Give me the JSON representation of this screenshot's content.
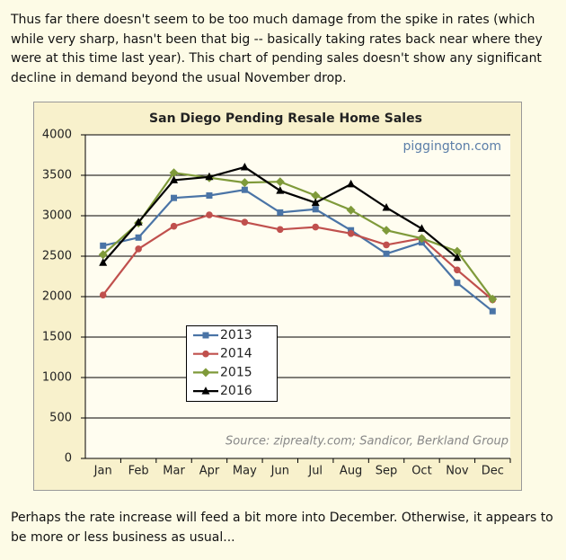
{
  "text_before": "Thus far there doesn't seem to be too much damage from the spike in rates (which while very sharp, hasn't been that big -- basically taking rates back near where they were at this time last year).  This chart of pending sales doesn't show any significant decline in demand beyond the usual November drop.",
  "chart_data": {
    "type": "line",
    "title": "San Diego Pending Resale Home Sales",
    "watermark": "piggington.com",
    "source": "Source: ziprealty.com; Sandicor, Berkland Group",
    "categories": [
      "Jan",
      "Feb",
      "Mar",
      "Apr",
      "May",
      "Jun",
      "Jul",
      "Aug",
      "Sep",
      "Oct",
      "Nov",
      "Dec"
    ],
    "series": [
      {
        "name": "2013",
        "color": "#4a74a6",
        "marker": "square",
        "values": [
          2630,
          2730,
          3220,
          3250,
          3320,
          3040,
          3080,
          2820,
          2530,
          2670,
          2170,
          1820
        ]
      },
      {
        "name": "2014",
        "color": "#c0504d",
        "marker": "circle",
        "values": [
          2020,
          2590,
          2870,
          3010,
          2920,
          2830,
          2860,
          2780,
          2640,
          2720,
          2330,
          1960
        ]
      },
      {
        "name": "2015",
        "color": "#7f9a3a",
        "marker": "diamond",
        "values": [
          2520,
          2910,
          3530,
          3470,
          3410,
          3420,
          3250,
          3070,
          2820,
          2720,
          2560,
          1970
        ]
      },
      {
        "name": "2016",
        "color": "#000000",
        "marker": "triangle",
        "values": [
          2420,
          2920,
          3440,
          3480,
          3600,
          3310,
          3160,
          3390,
          3100,
          2840,
          2480,
          null
        ]
      }
    ],
    "ylim": [
      0,
      4000
    ],
    "yticks": [
      0,
      500,
      1000,
      1500,
      2000,
      2500,
      3000,
      3500,
      4000
    ],
    "grid": true,
    "legend": "lower-left"
  },
  "text_after": "Perhaps the rate increase will feed a bit more into December.  Otherwise, it appears to be more or less business as usual..."
}
